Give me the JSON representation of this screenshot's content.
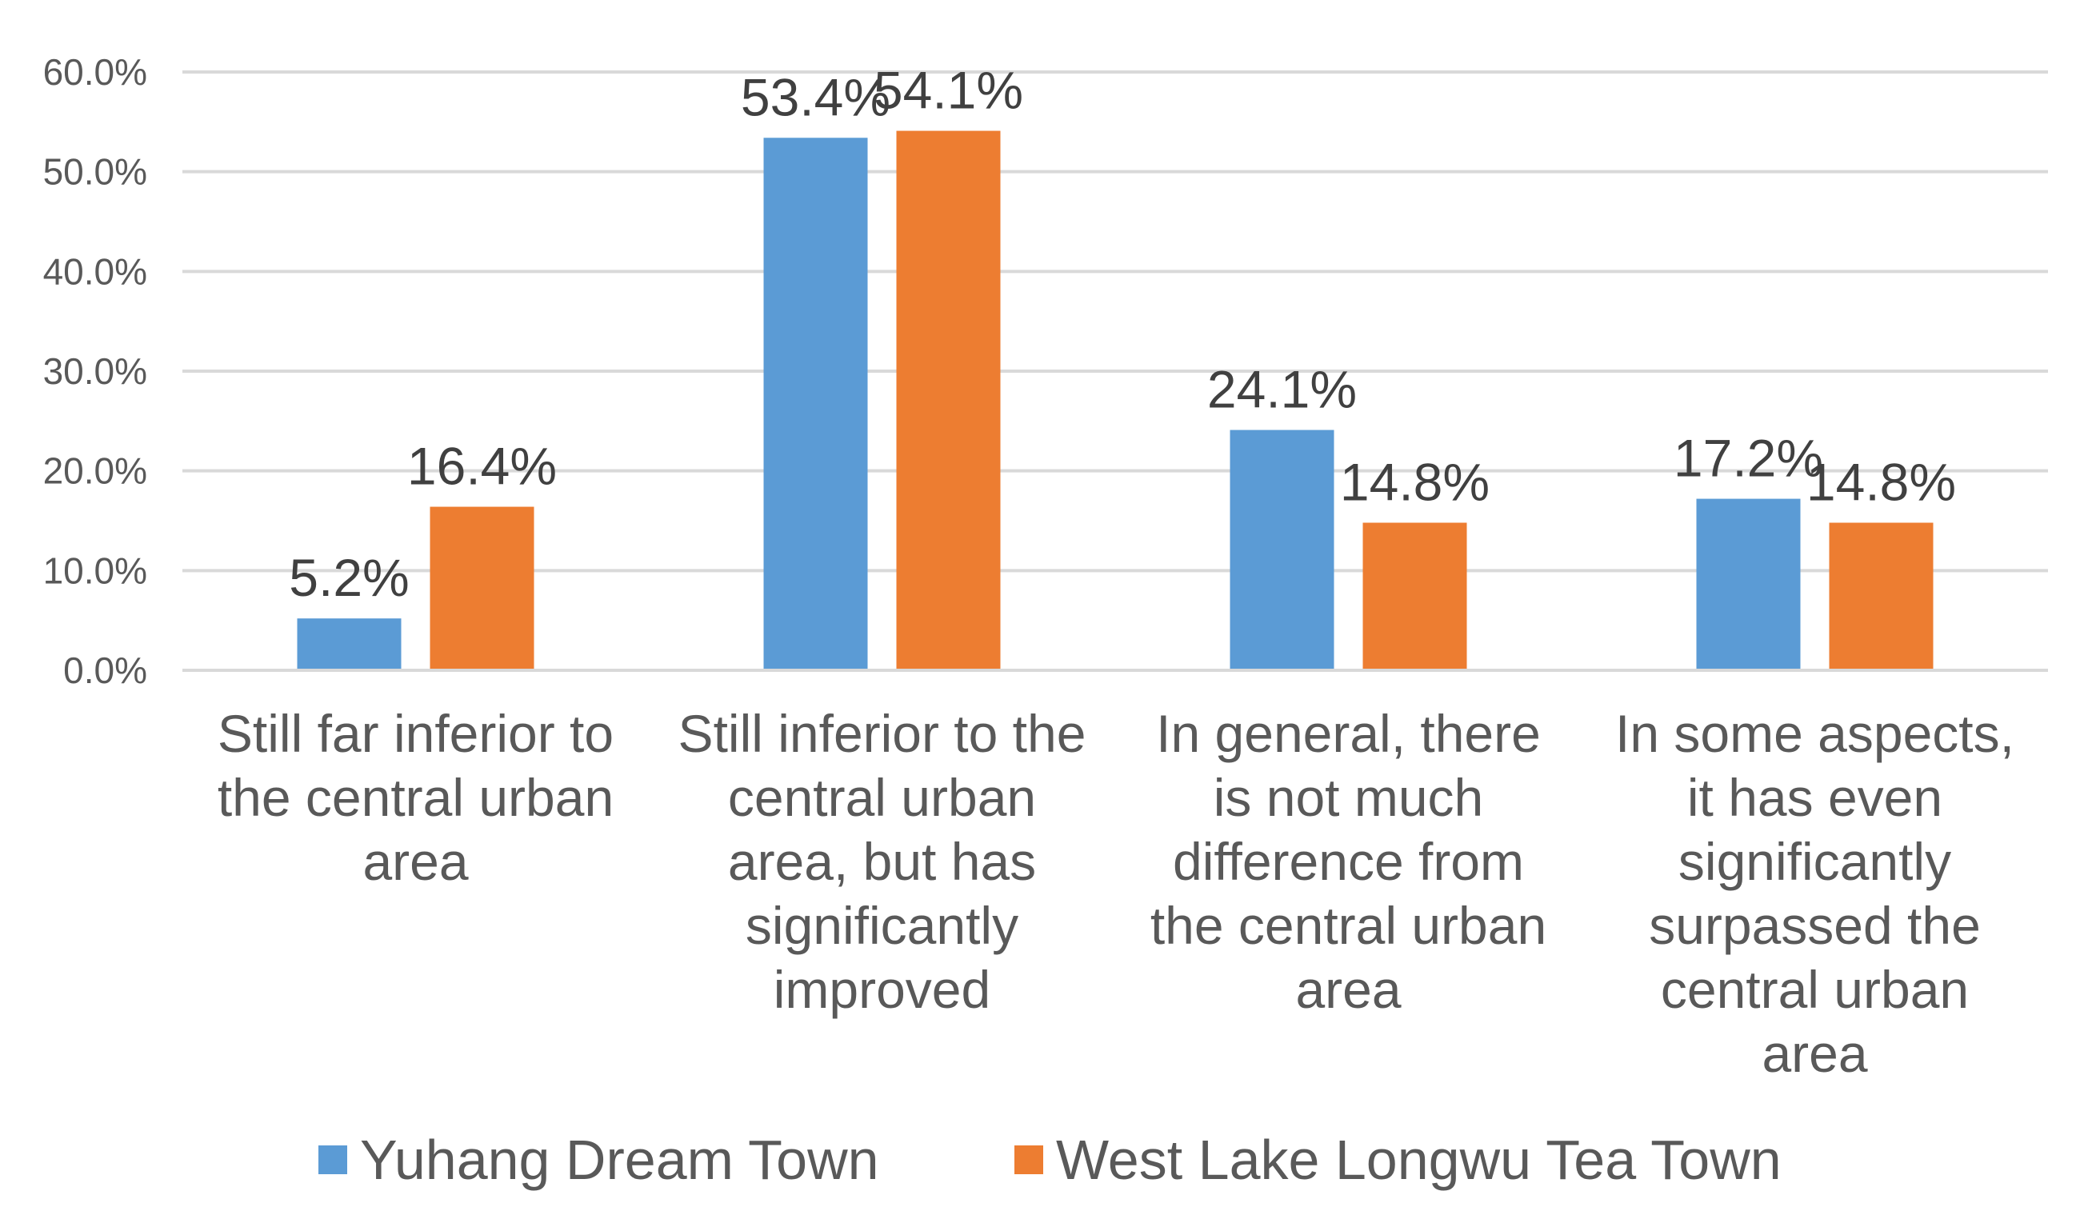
{
  "chart_data": {
    "type": "bar",
    "categories": [
      [
        "Still far inferior to",
        "the central urban",
        "area"
      ],
      [
        "Still inferior to the",
        "central urban",
        "area, but has",
        "significantly",
        "improved"
      ],
      [
        "In general, there",
        "is not much",
        "difference from",
        "the central urban",
        "area"
      ],
      [
        "In some aspects,",
        "it has even",
        "significantly",
        "surpassed the",
        "central urban",
        "area"
      ]
    ],
    "series": [
      {
        "name": "Yuhang Dream Town",
        "color": "#5b9bd5",
        "values": [
          5.2,
          53.4,
          24.1,
          17.2
        ],
        "labels": [
          "5.2%",
          "53.4%",
          "24.1%",
          "17.2%"
        ]
      },
      {
        "name": "West Lake Longwu Tea Town",
        "color": "#ed7d31",
        "values": [
          16.4,
          54.1,
          14.8,
          14.8
        ],
        "labels": [
          "16.4%",
          "54.1%",
          "14.8%",
          "14.8%"
        ]
      }
    ],
    "yticks": [
      "0.0%",
      "10.0%",
      "20.0%",
      "30.0%",
      "40.0%",
      "50.0%",
      "60.0%"
    ],
    "ylim": [
      0,
      60
    ],
    "grid": true,
    "legend": "bottom"
  }
}
